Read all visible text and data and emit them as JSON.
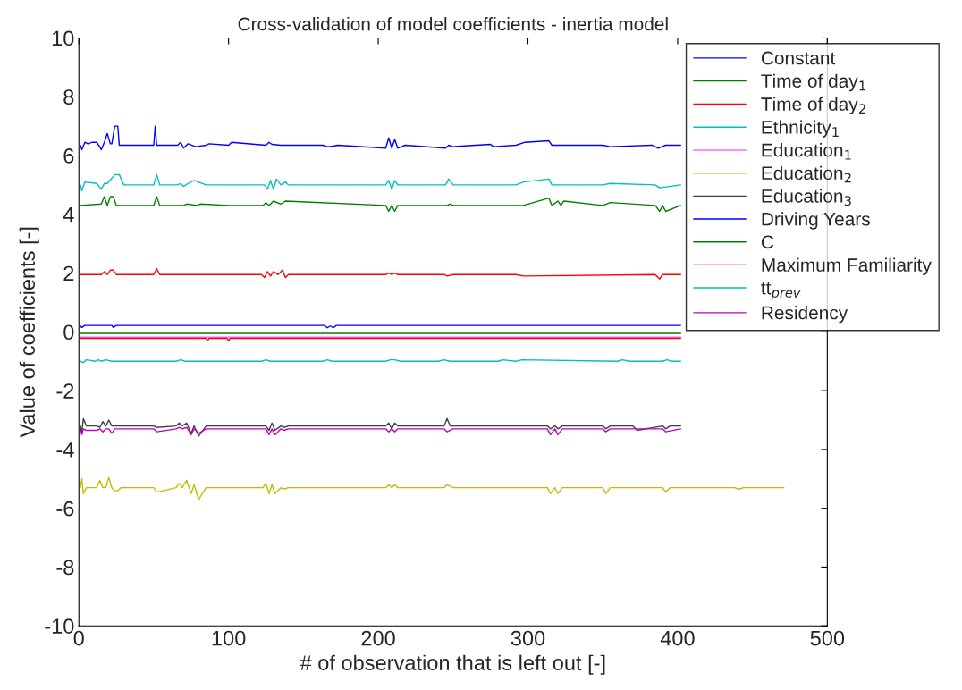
{
  "chart_data": {
    "type": "line",
    "title": "Cross-validation of model coefficients - inertia model",
    "xlabel": "# of observation that is left out [-]",
    "ylabel": "Value of coefficients [-]",
    "xlim": [
      0,
      500
    ],
    "ylim": [
      -10,
      10
    ],
    "xticks": [
      0,
      100,
      200,
      300,
      400,
      500
    ],
    "yticks": [
      -10,
      -8,
      -6,
      -4,
      -2,
      0,
      2,
      4,
      6,
      8,
      10
    ],
    "grid": false,
    "legend": "top right",
    "marker": "none",
    "line_style": "solid",
    "series": [
      {
        "name": "Constant",
        "color": "#0000ff",
        "x": [
          1,
          2,
          4,
          6,
          9,
          12,
          15,
          17,
          19,
          21,
          22,
          24,
          26,
          27,
          30,
          31,
          50,
          51,
          52,
          54,
          66,
          68,
          70,
          73,
          78,
          85,
          87,
          100,
          102,
          125,
          127,
          129,
          135,
          163,
          166,
          170,
          173,
          205,
          207,
          209,
          211,
          213,
          218,
          245,
          247,
          250,
          265,
          275,
          277,
          292,
          298,
          314,
          316,
          350,
          355,
          383,
          387,
          392,
          402
        ],
        "values": [
          6.35,
          6.2,
          6.45,
          6.4,
          6.45,
          6.45,
          6.2,
          6.45,
          6.75,
          6.4,
          6.4,
          7.0,
          7.0,
          6.35,
          6.35,
          6.35,
          6.35,
          7.0,
          6.35,
          6.35,
          6.35,
          6.45,
          6.25,
          6.4,
          6.3,
          6.35,
          6.4,
          6.35,
          6.45,
          6.35,
          6.45,
          6.38,
          6.35,
          6.35,
          6.3,
          6.32,
          6.35,
          6.25,
          6.6,
          6.25,
          6.55,
          6.25,
          6.35,
          6.25,
          6.35,
          6.3,
          6.35,
          6.38,
          6.3,
          6.35,
          6.45,
          6.5,
          6.35,
          6.35,
          6.3,
          6.35,
          6.25,
          6.35,
          6.35
        ]
      },
      {
        "name": "Time of day$_{1}$",
        "color": "#008000",
        "x": [
          1,
          15,
          17,
          19,
          21,
          23,
          25,
          27,
          30,
          31,
          50,
          52,
          54,
          70,
          72,
          79,
          81,
          100,
          123,
          125,
          127,
          130,
          135,
          138,
          205,
          207,
          209,
          211,
          213,
          240,
          244,
          246,
          248,
          250,
          292,
          297,
          314,
          316,
          320,
          322,
          324,
          350,
          355,
          385,
          388,
          390,
          392,
          402
        ],
        "values": [
          4.3,
          4.35,
          4.6,
          4.3,
          4.6,
          4.6,
          4.3,
          4.3,
          4.3,
          4.3,
          4.3,
          4.6,
          4.3,
          4.3,
          4.35,
          4.3,
          4.35,
          4.3,
          4.3,
          4.4,
          4.3,
          4.45,
          4.35,
          4.45,
          4.3,
          4.1,
          4.3,
          4.1,
          4.3,
          4.3,
          4.3,
          4.3,
          4.35,
          4.3,
          4.3,
          4.3,
          4.55,
          4.3,
          4.45,
          4.3,
          4.45,
          4.3,
          4.4,
          4.3,
          4.1,
          4.3,
          4.1,
          4.3
        ]
      },
      {
        "name": "Time of day$_{2}$",
        "color": "#ff0000",
        "x": [
          1,
          15,
          17,
          19,
          21,
          23,
          25,
          27,
          30,
          31,
          50,
          52,
          54,
          122,
          124,
          126,
          128,
          130,
          133,
          136,
          138,
          140,
          205,
          207,
          209,
          211,
          213,
          244,
          246,
          250,
          292,
          297,
          385,
          388,
          390,
          402
        ],
        "values": [
          1.95,
          1.95,
          2.05,
          1.95,
          2.1,
          2.1,
          1.95,
          1.95,
          1.95,
          1.95,
          1.95,
          2.15,
          1.95,
          1.95,
          1.85,
          2.05,
          1.9,
          2.05,
          1.95,
          2.1,
          1.85,
          1.95,
          1.95,
          2.0,
          1.95,
          2.0,
          1.95,
          1.95,
          1.9,
          1.95,
          1.95,
          1.9,
          1.95,
          1.8,
          1.95,
          1.95
        ]
      },
      {
        "name": "Ethnicity$_{1}$",
        "color": "#00bfbf",
        "x": [
          1,
          2,
          4,
          12,
          15,
          17,
          19,
          24,
          27,
          30,
          31,
          50,
          52,
          54,
          66,
          68,
          70,
          73,
          77,
          85,
          100,
          124,
          126,
          128,
          130,
          132,
          135,
          138,
          140,
          205,
          207,
          209,
          211,
          213,
          218,
          245,
          247,
          250,
          270,
          292,
          297,
          314,
          316,
          330,
          350,
          355,
          385,
          388,
          402
        ],
        "values": [
          5.0,
          4.8,
          5.1,
          5.05,
          4.85,
          5.05,
          5.05,
          5.35,
          5.35,
          5.0,
          5.0,
          5.0,
          5.35,
          5.0,
          5.0,
          5.05,
          4.95,
          5.05,
          5.15,
          5.0,
          5.0,
          5.0,
          4.85,
          5.15,
          4.85,
          5.2,
          5.0,
          5.1,
          5.0,
          5.0,
          5.15,
          4.85,
          5.15,
          5.0,
          5.0,
          5.0,
          5.2,
          5.0,
          5.0,
          5.0,
          5.1,
          5.2,
          5.0,
          5.0,
          5.0,
          5.05,
          5.0,
          4.9,
          5.0
        ]
      },
      {
        "name": "Education$_{1}$",
        "color": "#ff66ff",
        "x": [
          1,
          402
        ],
        "values": [
          -0.18,
          -0.18
        ]
      },
      {
        "name": "Education$_{2}$",
        "color": "#bfbf00",
        "x": [
          1,
          2,
          3,
          5,
          12,
          14,
          16,
          18,
          20,
          22,
          24,
          26,
          28,
          32,
          50,
          52,
          65,
          67,
          69,
          72,
          75,
          77,
          80,
          85,
          100,
          123,
          125,
          127,
          129,
          131,
          135,
          137,
          140,
          205,
          207,
          209,
          211,
          213,
          244,
          246,
          250,
          313,
          315,
          318,
          320,
          323,
          350,
          352,
          355,
          390,
          392,
          395,
          438,
          441,
          444,
          471
        ],
        "values": [
          -5.3,
          -5.0,
          -5.5,
          -5.3,
          -5.3,
          -5.05,
          -5.3,
          -5.3,
          -4.95,
          -5.3,
          -5.4,
          -5.4,
          -5.3,
          -5.3,
          -5.3,
          -5.45,
          -5.3,
          -5.15,
          -5.3,
          -5.05,
          -5.5,
          -5.2,
          -5.7,
          -5.3,
          -5.3,
          -5.3,
          -5.15,
          -5.5,
          -5.2,
          -5.5,
          -5.3,
          -5.35,
          -5.3,
          -5.3,
          -5.2,
          -5.3,
          -5.2,
          -5.3,
          -5.3,
          -5.2,
          -5.3,
          -5.3,
          -5.5,
          -5.3,
          -5.5,
          -5.3,
          -5.3,
          -5.5,
          -5.3,
          -5.3,
          -5.45,
          -5.3,
          -5.3,
          -5.35,
          -5.3,
          -5.3
        ]
      },
      {
        "name": "Education$_{3}$",
        "color": "#404040",
        "x": [
          1,
          2,
          3,
          5,
          12,
          14,
          16,
          18,
          20,
          22,
          24,
          26,
          28,
          32,
          50,
          52,
          65,
          67,
          69,
          72,
          75,
          77,
          80,
          85,
          100,
          123,
          125,
          127,
          129,
          131,
          135,
          137,
          140,
          205,
          207,
          209,
          211,
          213,
          244,
          246,
          248,
          250,
          313,
          315,
          318,
          320,
          323,
          350,
          352,
          355,
          370,
          373,
          390,
          392,
          395,
          402
        ],
        "values": [
          -3.2,
          -3.4,
          -2.95,
          -3.2,
          -3.2,
          -3.25,
          -3.05,
          -3.2,
          -3.0,
          -3.2,
          -3.2,
          -3.2,
          -3.2,
          -3.2,
          -3.2,
          -3.25,
          -3.2,
          -3.1,
          -3.2,
          -3.1,
          -3.45,
          -3.2,
          -3.55,
          -3.2,
          -3.2,
          -3.2,
          -3.2,
          -3.35,
          -3.1,
          -3.35,
          -3.2,
          -3.25,
          -3.2,
          -3.2,
          -3.1,
          -3.3,
          -3.1,
          -3.2,
          -3.2,
          -2.95,
          -3.2,
          -3.2,
          -3.2,
          -3.3,
          -3.2,
          -3.3,
          -3.2,
          -3.2,
          -3.3,
          -3.2,
          -3.2,
          -3.35,
          -3.2,
          -3.3,
          -3.2,
          -3.2
        ]
      },
      {
        "name": "Driving Years",
        "color": "#0000ff",
        "x": [
          1,
          2,
          4,
          22,
          23,
          25,
          164,
          166,
          168,
          170,
          172,
          402
        ],
        "values": [
          0.2,
          0.15,
          0.22,
          0.22,
          0.15,
          0.22,
          0.22,
          0.14,
          0.2,
          0.14,
          0.22,
          0.22
        ]
      },
      {
        "name": "C",
        "color": "#008000",
        "x": [
          1,
          402
        ],
        "values": [
          -0.05,
          -0.05
        ]
      },
      {
        "name": "Maximum Familiarity",
        "color": "#ff0000",
        "x": [
          1,
          85,
          86,
          87,
          99,
          100,
          101,
          402
        ],
        "values": [
          -0.22,
          -0.22,
          -0.3,
          -0.22,
          -0.22,
          -0.3,
          -0.22,
          -0.22
        ]
      },
      {
        "name": "tt$_{prev}$",
        "color": "#00bfbf",
        "x": [
          1,
          3,
          5,
          11,
          13,
          15,
          18,
          22,
          65,
          68,
          71,
          75,
          122,
          125,
          128,
          130,
          163,
          166,
          169,
          205,
          208,
          211,
          215,
          240,
          244,
          248,
          280,
          283,
          292,
          296,
          360,
          363,
          368,
          390,
          393,
          396,
          402
        ],
        "values": [
          -1.0,
          -1.05,
          -0.95,
          -1.0,
          -0.95,
          -1.0,
          -0.95,
          -1.0,
          -1.0,
          -0.95,
          -1.0,
          -1.0,
          -1.0,
          -0.95,
          -1.0,
          -1.0,
          -1.0,
          -0.95,
          -1.0,
          -1.0,
          -0.95,
          -0.95,
          -1.0,
          -1.0,
          -0.95,
          -1.0,
          -1.0,
          -0.95,
          -1.0,
          -0.95,
          -1.0,
          -0.95,
          -1.0,
          -1.0,
          -0.95,
          -1.0,
          -1.0
        ]
      },
      {
        "name": "Residency",
        "color": "#bf00bf",
        "x": [
          1,
          2,
          3,
          5,
          12,
          14,
          16,
          18,
          20,
          22,
          24,
          26,
          28,
          50,
          52,
          65,
          67,
          69,
          72,
          75,
          77,
          80,
          85,
          100,
          123,
          125,
          127,
          129,
          131,
          135,
          137,
          140,
          205,
          207,
          209,
          211,
          213,
          244,
          246,
          250,
          313,
          315,
          318,
          320,
          323,
          350,
          352,
          355,
          390,
          392,
          402
        ],
        "values": [
          -3.3,
          -3.5,
          -3.3,
          -3.35,
          -3.35,
          -3.3,
          -3.4,
          -3.3,
          -3.3,
          -3.45,
          -3.3,
          -3.3,
          -3.3,
          -3.3,
          -3.4,
          -3.3,
          -3.25,
          -3.3,
          -3.25,
          -3.5,
          -3.3,
          -3.45,
          -3.3,
          -3.3,
          -3.3,
          -3.3,
          -3.5,
          -3.3,
          -3.5,
          -3.3,
          -3.35,
          -3.3,
          -3.3,
          -3.4,
          -3.3,
          -3.4,
          -3.3,
          -3.3,
          -3.4,
          -3.3,
          -3.3,
          -3.5,
          -3.3,
          -3.5,
          -3.3,
          -3.3,
          -3.4,
          -3.3,
          -3.3,
          -3.4,
          -3.3
        ]
      }
    ]
  }
}
